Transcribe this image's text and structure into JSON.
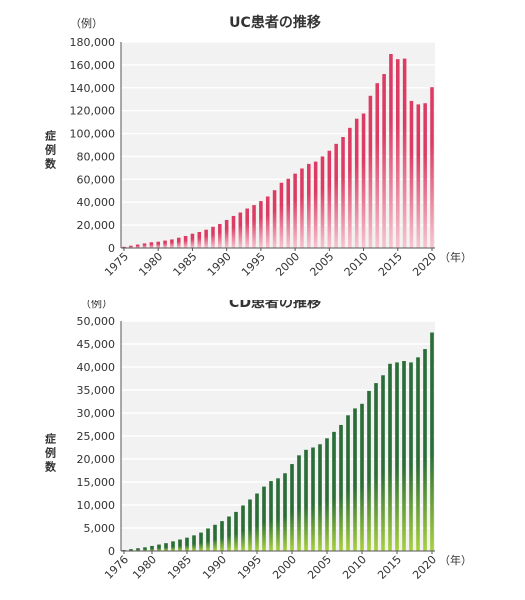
{
  "colors": {
    "plot_bg": "#f2f2f2",
    "grid": "#ffffff",
    "uc_bar_top": "#dc3c63",
    "uc_bar_bottom": "#f6c6d1",
    "cd_bar_top": "#2a6d36",
    "cd_bar_bottom": "#a9d13e",
    "text": "#333333"
  },
  "chart_data": [
    {
      "type": "bar",
      "title": "UC患者の推移",
      "ylabel": "症例数",
      "yunit": "（例）",
      "xunit": "（年）",
      "ylim": [
        0,
        180000
      ],
      "yticks": [
        0,
        20000,
        40000,
        60000,
        80000,
        100000,
        120000,
        140000,
        160000,
        180000
      ],
      "ytick_labels": [
        "0",
        "20,000",
        "40,000",
        "60,000",
        "80,000",
        "100,000",
        "120,000",
        "140,000",
        "160,000",
        "180,000"
      ],
      "xtick_labels": [
        "1975",
        "1980",
        "1985",
        "1990",
        "1995",
        "2000",
        "2005",
        "2010",
        "2015",
        "2020"
      ],
      "grid": true,
      "x": [
        1975,
        1976,
        1977,
        1978,
        1979,
        1980,
        1981,
        1982,
        1983,
        1984,
        1985,
        1986,
        1987,
        1988,
        1989,
        1990,
        1991,
        1992,
        1993,
        1994,
        1995,
        1996,
        1997,
        1998,
        1999,
        2000,
        2001,
        2002,
        2003,
        2004,
        2005,
        2006,
        2007,
        2008,
        2009,
        2010,
        2011,
        2012,
        2013,
        2014,
        2015,
        2016,
        2017,
        2018,
        2019,
        2020
      ],
      "values": [
        1000,
        2000,
        3000,
        4000,
        5000,
        5500,
        6500,
        7500,
        9000,
        10500,
        12500,
        14000,
        16000,
        18500,
        21000,
        24500,
        28000,
        31000,
        34500,
        37500,
        41000,
        45000,
        50500,
        57000,
        60500,
        65000,
        69500,
        73500,
        75500,
        80000,
        85000,
        91000,
        97000,
        105000,
        113000,
        117500,
        133000,
        144000,
        152000,
        169500,
        165000,
        165500,
        128500,
        125500,
        126500,
        140500
      ]
    },
    {
      "type": "bar",
      "title": "CD患者の推移",
      "ylabel": "症例数",
      "yunit": "（例）",
      "xunit": "（年）",
      "ylim": [
        0,
        50000
      ],
      "yticks": [
        0,
        5000,
        10000,
        15000,
        20000,
        25000,
        30000,
        35000,
        40000,
        45000,
        50000
      ],
      "ytick_labels": [
        "0",
        "5,000",
        "10,000",
        "15,000",
        "20,000",
        "25,000",
        "30,000",
        "35,000",
        "40,000",
        "45,000",
        "50,000"
      ],
      "xtick_labels": [
        "1976",
        "1980",
        "1985",
        "1990",
        "1995",
        "2000",
        "2005",
        "2010",
        "2015",
        "2020"
      ],
      "grid": true,
      "x": [
        1976,
        1977,
        1978,
        1979,
        1980,
        1981,
        1982,
        1983,
        1984,
        1985,
        1986,
        1987,
        1988,
        1989,
        1990,
        1991,
        1992,
        1993,
        1994,
        1995,
        1996,
        1997,
        1998,
        1999,
        2000,
        2001,
        2002,
        2003,
        2004,
        2005,
        2006,
        2007,
        2008,
        2009,
        2010,
        2011,
        2012,
        2013,
        2014,
        2015,
        2016,
        2017,
        2018,
        2019,
        2020
      ],
      "values": [
        200,
        400,
        600,
        800,
        1100,
        1400,
        1700,
        2100,
        2500,
        2900,
        3400,
        4000,
        4900,
        5700,
        6500,
        7500,
        8500,
        9900,
        11200,
        12500,
        14000,
        15200,
        15800,
        16900,
        18900,
        20800,
        22000,
        22500,
        23200,
        24500,
        25900,
        27400,
        29500,
        31000,
        32000,
        34800,
        36500,
        38200,
        40700,
        41000,
        41300,
        41000,
        42100,
        43900,
        47500
      ]
    }
  ]
}
